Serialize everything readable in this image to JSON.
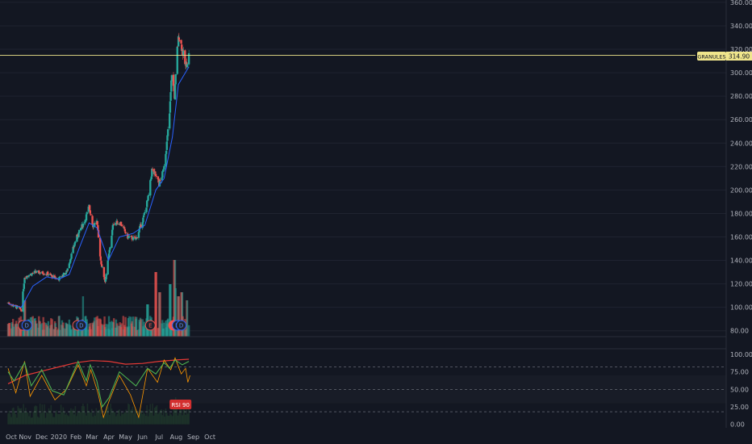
{
  "colors": {
    "background": "#131722",
    "grid": "#1f2330",
    "up": "#26a69a",
    "down": "#ef5350",
    "ma": "#2962ff",
    "price_line": "#f0e68c",
    "rsi_green": "#4caf50",
    "rsi_orange": "#ff9800",
    "rsi_red": "#e53935"
  },
  "chart_data": [
    {
      "type": "candlestick",
      "symbol": "GRANULES",
      "last_price": "314.90",
      "x_labels": [
        "Oct",
        "Nov",
        "Dec",
        "2020",
        "Feb",
        "Mar",
        "Apr",
        "May",
        "Jun",
        "Jul",
        "Aug",
        "Sep",
        "Oct"
      ],
      "y_ticks": [
        "360.00",
        "340.00",
        "320.00",
        "300.00",
        "280.00",
        "260.00",
        "240.00",
        "220.00",
        "200.00",
        "180.00",
        "160.00",
        "140.00",
        "120.00",
        "100.00",
        "80.00"
      ],
      "ylim": [
        75,
        362
      ],
      "close_path": [
        [
          "2019-10-01",
          104
        ],
        [
          "2019-10-25",
          98
        ],
        [
          "2019-10-31",
          126
        ],
        [
          "2019-11-20",
          130
        ],
        [
          "2019-12-10",
          129
        ],
        [
          "2019-12-31",
          124
        ],
        [
          "2020-01-15",
          130
        ],
        [
          "2020-02-01",
          158
        ],
        [
          "2020-02-18",
          175
        ],
        [
          "2020-02-25",
          186
        ],
        [
          "2020-03-03",
          170
        ],
        [
          "2020-03-10",
          173
        ],
        [
          "2020-03-17",
          140
        ],
        [
          "2020-03-25",
          122
        ],
        [
          "2020-04-01",
          145
        ],
        [
          "2020-04-09",
          172
        ],
        [
          "2020-04-22",
          172
        ],
        [
          "2020-05-05",
          160
        ],
        [
          "2020-05-20",
          158
        ],
        [
          "2020-06-03",
          177
        ],
        [
          "2020-06-12",
          195
        ],
        [
          "2020-06-18",
          217
        ],
        [
          "2020-06-25",
          212
        ],
        [
          "2020-07-01",
          205
        ],
        [
          "2020-07-08",
          215
        ],
        [
          "2020-07-15",
          240
        ],
        [
          "2020-07-20",
          265
        ],
        [
          "2020-07-24",
          300
        ],
        [
          "2020-07-29",
          280
        ],
        [
          "2020-08-03",
          320
        ],
        [
          "2020-08-06",
          332
        ],
        [
          "2020-08-11",
          322
        ],
        [
          "2020-08-18",
          305
        ],
        [
          "2020-08-24",
          315
        ]
      ],
      "sma_path": [
        [
          "2019-10-01",
          103
        ],
        [
          "2019-10-25",
          100
        ],
        [
          "2019-11-15",
          118
        ],
        [
          "2019-12-10",
          126
        ],
        [
          "2020-01-01",
          124
        ],
        [
          "2020-01-20",
          128
        ],
        [
          "2020-02-05",
          148
        ],
        [
          "2020-02-25",
          172
        ],
        [
          "2020-03-10",
          168
        ],
        [
          "2020-03-31",
          140
        ],
        [
          "2020-04-20",
          160
        ],
        [
          "2020-05-15",
          163
        ],
        [
          "2020-06-05",
          170
        ],
        [
          "2020-06-25",
          200
        ],
        [
          "2020-07-10",
          210
        ],
        [
          "2020-07-25",
          245
        ],
        [
          "2020-08-05",
          290
        ],
        [
          "2020-08-24",
          305
        ]
      ],
      "volume_spikes": [
        [
          "2019-10-31",
          0.45
        ],
        [
          "2020-02-15",
          0.5
        ],
        [
          "2020-06-10",
          0.4
        ],
        [
          "2020-06-25",
          0.8
        ],
        [
          "2020-07-02",
          0.55
        ],
        [
          "2020-07-21",
          0.65
        ],
        [
          "2020-07-29",
          0.95
        ],
        [
          "2020-08-01",
          0.6
        ],
        [
          "2020-08-05",
          0.5
        ],
        [
          "2020-08-11",
          0.55
        ],
        [
          "2020-08-21",
          0.45
        ]
      ],
      "event_markers": [
        {
          "date": "2019-10-28",
          "label": "E",
          "style": "earnings"
        },
        {
          "date": "2019-11-04",
          "label": "D",
          "style": "dividend"
        },
        {
          "date": "2020-02-04",
          "label": "E",
          "style": "earnings"
        },
        {
          "date": "2020-02-11",
          "label": "D",
          "style": "dividend"
        },
        {
          "date": "2020-06-15",
          "label": "E",
          "style": "earnings"
        },
        {
          "date": "2020-07-27",
          "label": "E",
          "style": "earnings-active"
        },
        {
          "date": "2020-08-03",
          "label": "D",
          "style": "dividend"
        },
        {
          "date": "2020-08-10",
          "label": "D",
          "style": "dividend"
        }
      ]
    },
    {
      "type": "line",
      "name": "RSI panel",
      "y_ticks": [
        "100.00",
        "75.00",
        "50.00",
        "25.00",
        "0.00"
      ],
      "ylim": [
        -5,
        108
      ],
      "hlines": [
        82,
        50,
        18
      ],
      "badge": "RSI 90",
      "green_path": [
        [
          "2019-10-01",
          75
        ],
        [
          "2019-10-12",
          62
        ],
        [
          "2019-10-31",
          88
        ],
        [
          "2019-11-12",
          55
        ],
        [
          "2019-12-01",
          78
        ],
        [
          "2019-12-20",
          48
        ],
        [
          "2020-01-10",
          42
        ],
        [
          "2020-02-05",
          90
        ],
        [
          "2020-02-20",
          62
        ],
        [
          "2020-02-27",
          85
        ],
        [
          "2020-03-10",
          62
        ],
        [
          "2020-03-20",
          25
        ],
        [
          "2020-04-01",
          38
        ],
        [
          "2020-04-20",
          75
        ],
        [
          "2020-05-20",
          55
        ],
        [
          "2020-06-10",
          80
        ],
        [
          "2020-06-25",
          72
        ],
        [
          "2020-07-10",
          88
        ],
        [
          "2020-07-20",
          80
        ],
        [
          "2020-07-30",
          92
        ],
        [
          "2020-08-12",
          85
        ],
        [
          "2020-08-24",
          90
        ]
      ],
      "orange_path": [
        [
          "2019-10-01",
          80
        ],
        [
          "2019-10-15",
          45
        ],
        [
          "2019-10-31",
          90
        ],
        [
          "2019-11-10",
          40
        ],
        [
          "2019-12-01",
          70
        ],
        [
          "2019-12-25",
          35
        ],
        [
          "2020-01-15",
          50
        ],
        [
          "2020-02-05",
          85
        ],
        [
          "2020-02-20",
          55
        ],
        [
          "2020-02-28",
          78
        ],
        [
          "2020-03-12",
          45
        ],
        [
          "2020-03-22",
          10
        ],
        [
          "2020-04-02",
          35
        ],
        [
          "2020-04-20",
          70
        ],
        [
          "2020-05-10",
          42
        ],
        [
          "2020-05-25",
          10
        ],
        [
          "2020-06-10",
          80
        ],
        [
          "2020-06-28",
          60
        ],
        [
          "2020-07-10",
          92
        ],
        [
          "2020-07-22",
          78
        ],
        [
          "2020-07-30",
          95
        ],
        [
          "2020-08-10",
          72
        ],
        [
          "2020-08-18",
          80
        ],
        [
          "2020-08-22",
          60
        ],
        [
          "2020-08-26",
          70
        ]
      ],
      "red_path": [
        [
          "2019-10-01",
          58
        ],
        [
          "2019-11-01",
          70
        ],
        [
          "2019-12-01",
          76
        ],
        [
          "2020-01-01",
          82
        ],
        [
          "2020-02-01",
          88
        ],
        [
          "2020-03-01",
          91
        ],
        [
          "2020-04-01",
          90
        ],
        [
          "2020-05-01",
          86
        ],
        [
          "2020-06-01",
          87
        ],
        [
          "2020-07-01",
          90
        ],
        [
          "2020-08-01",
          92
        ],
        [
          "2020-08-24",
          93
        ]
      ]
    }
  ]
}
